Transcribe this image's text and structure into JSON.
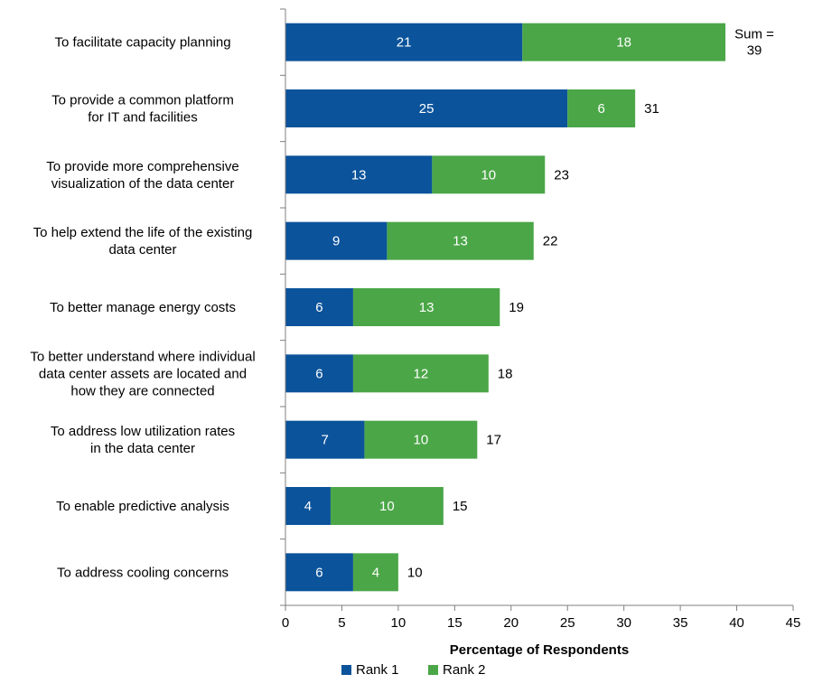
{
  "chart_data": {
    "type": "bar",
    "orientation": "horizontal",
    "stacked": true,
    "categories": [
      "To facilitate capacity planning",
      "To provide a common platform for IT and facilities",
      "To provide more comprehensive visualization of the data center",
      "To help extend the life of the existing data center",
      "To better manage energy costs",
      "To better understand where individual data center assets are located and how they are connected",
      "To address low utilization rates in the data center",
      "To enable predictive analysis",
      "To address cooling concerns"
    ],
    "category_lines": [
      [
        "To facilitate capacity planning"
      ],
      [
        "To provide a common platform",
        "for IT and facilities"
      ],
      [
        "To provide more comprehensive",
        "visualization of the data center"
      ],
      [
        "To help extend the life of the existing",
        "data center"
      ],
      [
        "To better manage energy costs"
      ],
      [
        "To better understand where individual",
        "data center assets are located and",
        "how they are connected"
      ],
      [
        "To address low utilization rates",
        "in the data center"
      ],
      [
        "To enable predictive analysis"
      ],
      [
        "To address cooling concerns"
      ]
    ],
    "series": [
      {
        "name": "Rank 1",
        "color": "#0B539B",
        "values": [
          21,
          25,
          13,
          9,
          6,
          6,
          7,
          4,
          6
        ]
      },
      {
        "name": "Rank 2",
        "color": "#4BA647",
        "values": [
          18,
          6,
          10,
          13,
          13,
          12,
          10,
          10,
          4
        ]
      }
    ],
    "sums": [
      39,
      31,
      23,
      22,
      19,
      18,
      17,
      15,
      10
    ],
    "sum_first_lines": [
      "Sum =",
      "39"
    ],
    "xlabel": "Percentage of Respondents",
    "ylabel": "",
    "xlim": [
      0,
      45
    ],
    "xticks": [
      0,
      5,
      10,
      15,
      20,
      25,
      30,
      35,
      40,
      45
    ],
    "grid": false,
    "legend_position": "bottom"
  }
}
